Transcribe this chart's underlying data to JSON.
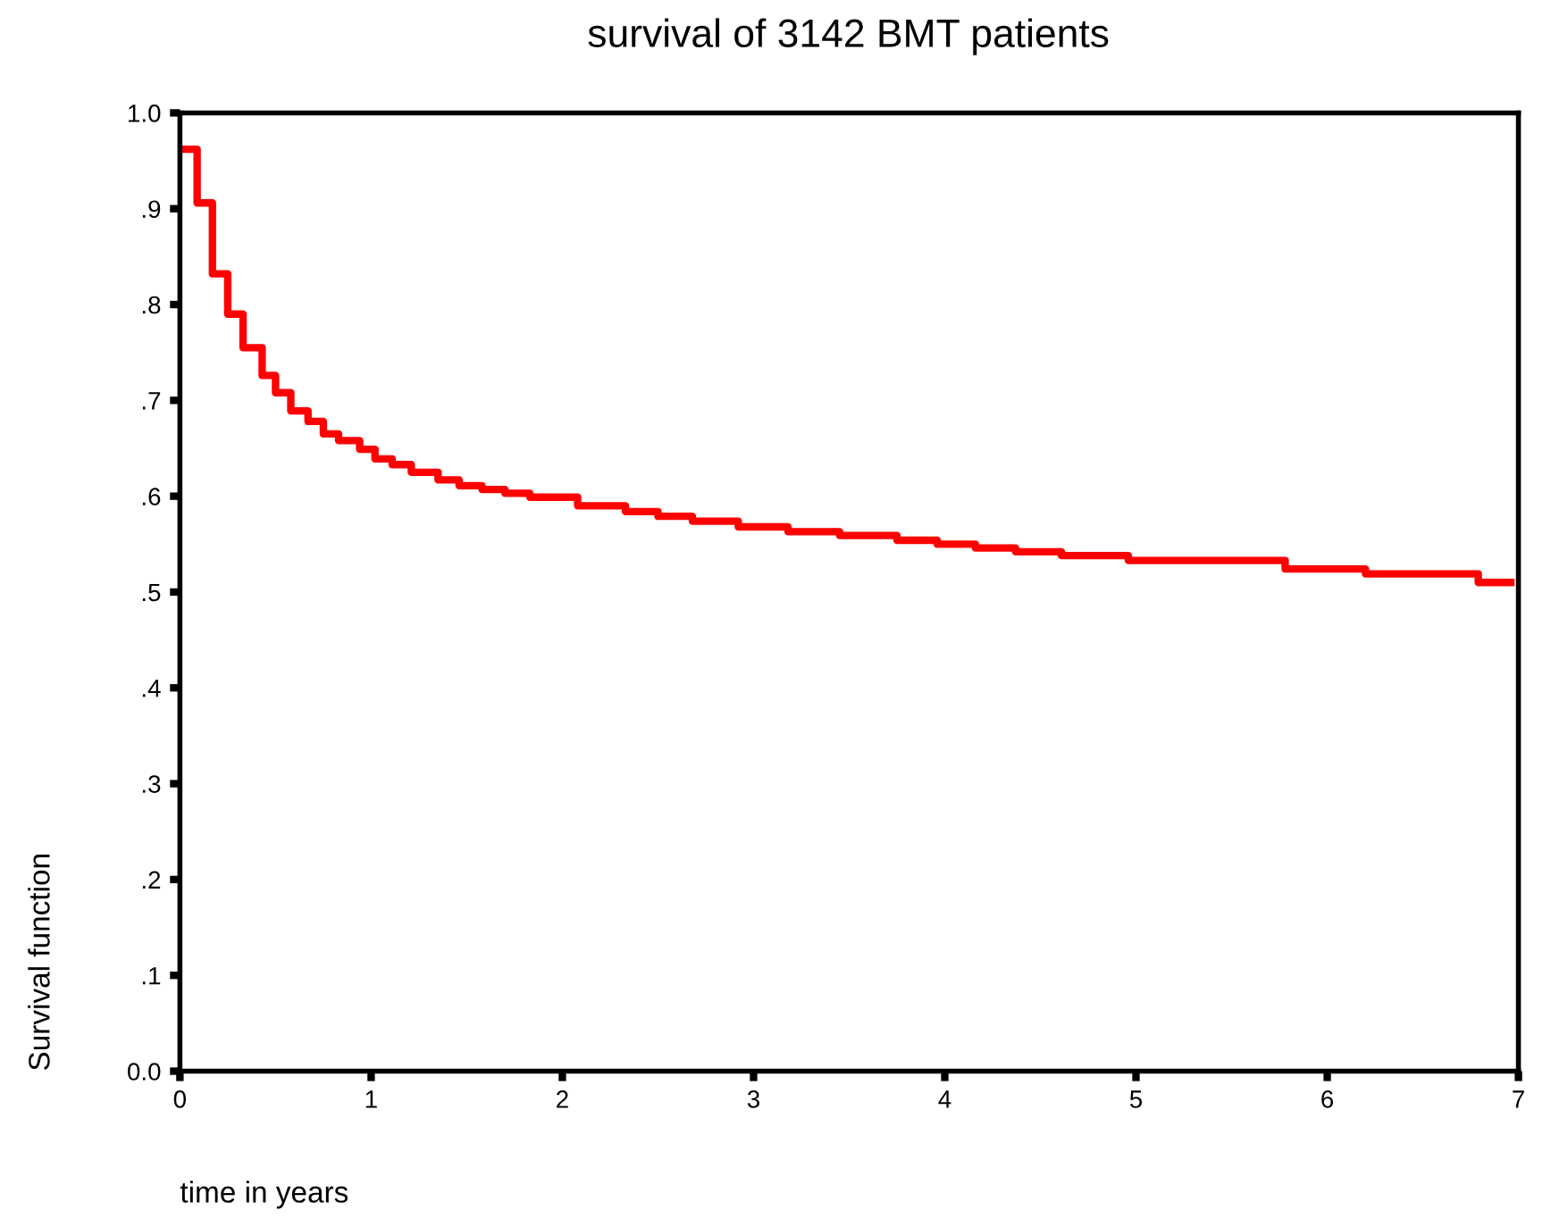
{
  "chart_data": {
    "type": "step",
    "title": "survival of 3142 BMT patients",
    "xlabel": "time in years",
    "ylabel": "Survival function",
    "x": [
      0,
      0.09,
      0.17,
      0.25,
      0.33,
      0.43,
      0.5,
      0.58,
      0.67,
      0.75,
      0.83,
      0.94,
      1.02,
      1.11,
      1.21,
      1.35,
      1.46,
      1.58,
      1.7,
      1.83,
      2.08,
      2.33,
      2.5,
      2.68,
      2.92,
      3.18,
      3.45,
      3.75,
      3.96,
      4.16,
      4.37,
      4.61,
      4.96,
      5.78,
      6.2,
      6.79,
      6.96
    ],
    "series": [
      {
        "color": "#ff0000",
        "values": [
          0.962,
          0.906,
          0.832,
          0.79,
          0.755,
          0.726,
          0.708,
          0.689,
          0.678,
          0.665,
          0.658,
          0.649,
          0.639,
          0.633,
          0.625,
          0.617,
          0.611,
          0.607,
          0.603,
          0.599,
          0.59,
          0.584,
          0.579,
          0.574,
          0.568,
          0.563,
          0.559,
          0.554,
          0.55,
          0.546,
          0.542,
          0.538,
          0.533,
          0.524,
          0.519,
          0.51,
          0.51
        ]
      }
    ],
    "xlim": [
      0,
      7
    ],
    "xticks": [
      0,
      1,
      2,
      3,
      4,
      5,
      6,
      7
    ],
    "ylim": [
      0,
      1
    ],
    "yticks": [
      {
        "value": 0,
        "label": "0.0"
      },
      {
        "value": 0.1,
        "label": ".1"
      },
      {
        "value": 0.2,
        "label": ".2"
      },
      {
        "value": 0.3,
        "label": ".3"
      },
      {
        "value": 0.4,
        "label": ".4"
      },
      {
        "value": 0.5,
        "label": ".5"
      },
      {
        "value": 0.6,
        "label": ".6"
      },
      {
        "value": 0.7,
        "label": ".7"
      },
      {
        "value": 0.8,
        "label": ".8"
      },
      {
        "value": 0.9,
        "label": ".9"
      },
      {
        "value": 1,
        "label": "1.0"
      }
    ],
    "line_style": "solid"
  }
}
